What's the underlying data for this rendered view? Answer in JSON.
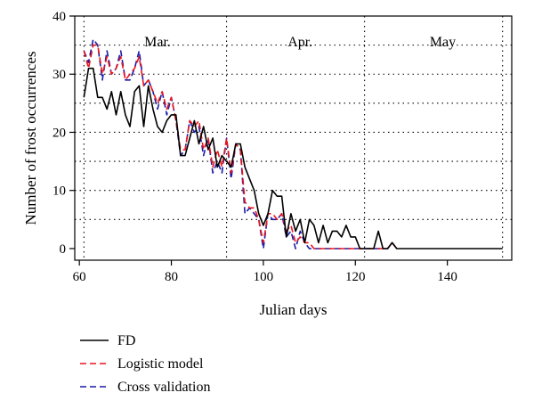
{
  "chart_data": {
    "type": "line",
    "xlabel": "Julian days",
    "ylabel": "Number of frost occurrences",
    "xlim": [
      59,
      154
    ],
    "ylim": [
      -2,
      40
    ],
    "xticks": [
      60,
      80,
      100,
      120,
      140
    ],
    "yticks": [
      0,
      10,
      20,
      30,
      40
    ],
    "grid": "dotted",
    "vlines": [
      61,
      92,
      122,
      152
    ],
    "hlines": [
      5,
      10,
      15,
      20,
      25,
      30,
      35
    ],
    "months": [
      {
        "label": "Mar.",
        "x": 77
      },
      {
        "label": "Apr.",
        "x": 108
      },
      {
        "label": "May",
        "x": 139
      }
    ],
    "legend_position": "bottom-left",
    "series": [
      {
        "name": "FD",
        "color": "#000000",
        "dash": "solid",
        "x": [
          61,
          62,
          63,
          64,
          65,
          66,
          67,
          68,
          69,
          70,
          71,
          72,
          73,
          74,
          75,
          76,
          77,
          78,
          79,
          80,
          81,
          82,
          83,
          84,
          85,
          86,
          87,
          88,
          89,
          90,
          91,
          92,
          93,
          94,
          95,
          96,
          97,
          98,
          99,
          100,
          101,
          102,
          103,
          104,
          105,
          106,
          107,
          108,
          109,
          110,
          111,
          112,
          113,
          114,
          115,
          116,
          117,
          118,
          119,
          120,
          121,
          122,
          123,
          124,
          125,
          126,
          127,
          128,
          129,
          130,
          140,
          152
        ],
        "values": [
          26,
          31,
          31,
          26,
          26,
          24,
          27,
          23,
          27,
          23,
          21,
          27,
          28,
          21,
          28,
          24,
          21,
          20,
          22,
          23,
          23,
          16,
          16,
          19,
          22,
          18,
          21,
          17,
          19,
          14,
          16,
          15,
          14,
          18,
          18,
          14,
          12,
          10,
          6,
          4,
          6,
          10,
          9,
          9,
          2,
          6,
          3,
          5,
          1,
          5,
          4,
          1,
          4,
          1,
          3,
          3,
          2,
          4,
          2,
          2,
          0,
          0,
          0,
          0,
          3,
          0,
          0,
          1,
          0,
          0,
          0,
          0
        ]
      },
      {
        "name": "Logistic model",
        "color": "#e8141e",
        "dash": "dashed",
        "x": [
          61,
          62,
          63,
          64,
          65,
          66,
          67,
          68,
          69,
          70,
          71,
          72,
          73,
          74,
          75,
          76,
          77,
          78,
          79,
          80,
          81,
          82,
          83,
          84,
          85,
          86,
          87,
          88,
          89,
          90,
          91,
          92,
          93,
          94,
          95,
          96,
          97,
          98,
          99,
          100,
          101,
          102,
          103,
          104,
          105,
          106,
          107,
          108,
          109,
          110,
          111,
          112,
          113,
          114,
          115,
          116,
          117,
          118,
          119,
          120,
          121,
          122,
          123,
          124,
          125,
          126,
          127,
          128,
          129
        ],
        "values": [
          34,
          31,
          35,
          35,
          30,
          33,
          30,
          31,
          33,
          29,
          30,
          31,
          33,
          28,
          29,
          27,
          25,
          27,
          24,
          26,
          22,
          17,
          17,
          22,
          21,
          22,
          17,
          19,
          14,
          17,
          14,
          19,
          13,
          18,
          17,
          8,
          7,
          7,
          5,
          1,
          6,
          6,
          5,
          6,
          3,
          4,
          1,
          2,
          1,
          1,
          0,
          0,
          0,
          0,
          0,
          0,
          0,
          0,
          0,
          0,
          0,
          0,
          0,
          0,
          0,
          0,
          0,
          1,
          0
        ]
      },
      {
        "name": "Cross validation",
        "color": "#1a1aa8",
        "dash": "dashed",
        "x": [
          61,
          62,
          63,
          64,
          65,
          66,
          67,
          68,
          69,
          70,
          71,
          72,
          73,
          74,
          75,
          76,
          77,
          78,
          79,
          80,
          81,
          82,
          83,
          84,
          85,
          86,
          87,
          88,
          89,
          90,
          91,
          92,
          93,
          94,
          95,
          96,
          97,
          98,
          99,
          100,
          101,
          102,
          103,
          104,
          105,
          106,
          107,
          108,
          109,
          110,
          111,
          112,
          113,
          114,
          115,
          116,
          117,
          118,
          119,
          120,
          121,
          122,
          123,
          124,
          125,
          126,
          127,
          128,
          129
        ],
        "values": [
          34,
          32,
          36,
          35,
          29,
          34,
          30,
          31,
          34,
          29,
          29,
          31,
          34,
          28,
          29,
          27,
          24,
          27,
          23,
          26,
          22,
          16,
          17,
          22,
          20,
          21,
          16,
          19,
          13,
          15,
          13,
          19,
          12,
          18,
          17,
          6,
          7,
          6,
          5,
          0,
          6,
          5,
          5,
          6,
          2,
          3,
          0,
          3,
          1,
          0,
          0,
          0,
          0,
          0,
          0,
          0,
          0,
          0,
          0,
          0,
          0,
          0,
          0,
          0,
          0,
          0,
          0,
          1,
          0
        ]
      }
    ]
  }
}
